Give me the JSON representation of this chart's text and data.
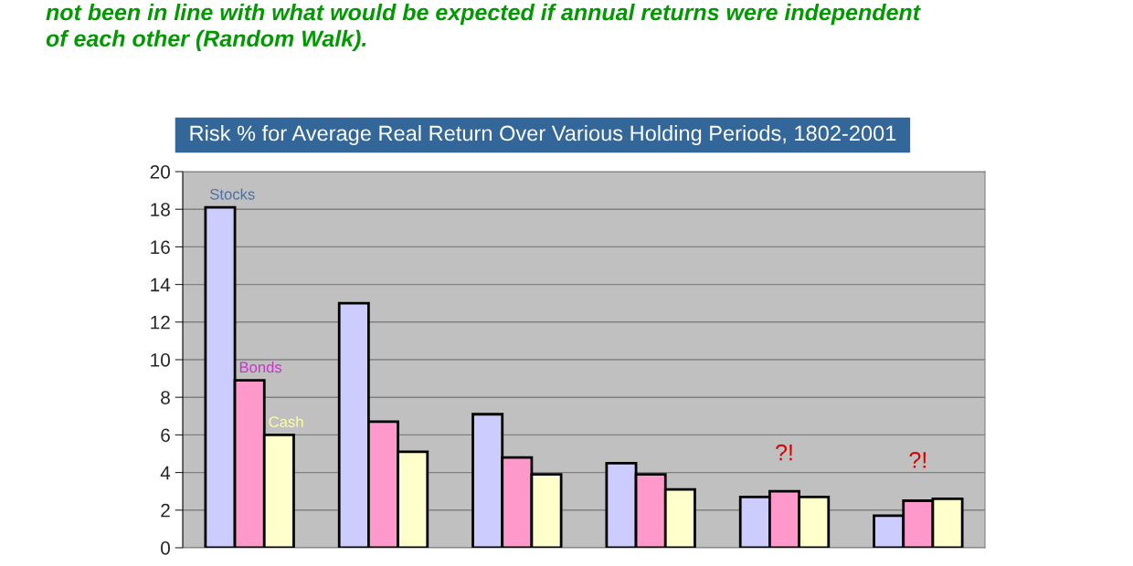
{
  "chart_data": {
    "type": "bar",
    "title": "Risk % for Average Real Return Over Various Holding Periods, 1802-2001",
    "categories": [
      null,
      null,
      null,
      null,
      null,
      null
    ],
    "series": [
      {
        "name": "Stocks",
        "color": "#ccccff",
        "values": [
          18.1,
          13.0,
          7.1,
          4.5,
          2.7,
          1.7
        ]
      },
      {
        "name": "Bonds",
        "color": "#ff99cc",
        "values": [
          8.9,
          6.7,
          4.8,
          3.9,
          3.0,
          2.5
        ]
      },
      {
        "name": "Cash",
        "color": "#ffffcc",
        "values": [
          6.0,
          5.1,
          3.9,
          3.1,
          2.7,
          2.6
        ]
      }
    ],
    "ylim": [
      0,
      20
    ],
    "yticks": [
      0,
      2,
      4,
      6,
      8,
      10,
      12,
      14,
      16,
      18,
      20
    ],
    "grid": "y",
    "legend": false,
    "annotations": [
      "not been in line with what would be expected if annual returns were independent of each other (Random Walk).",
      "?!",
      "?!"
    ]
  }
}
